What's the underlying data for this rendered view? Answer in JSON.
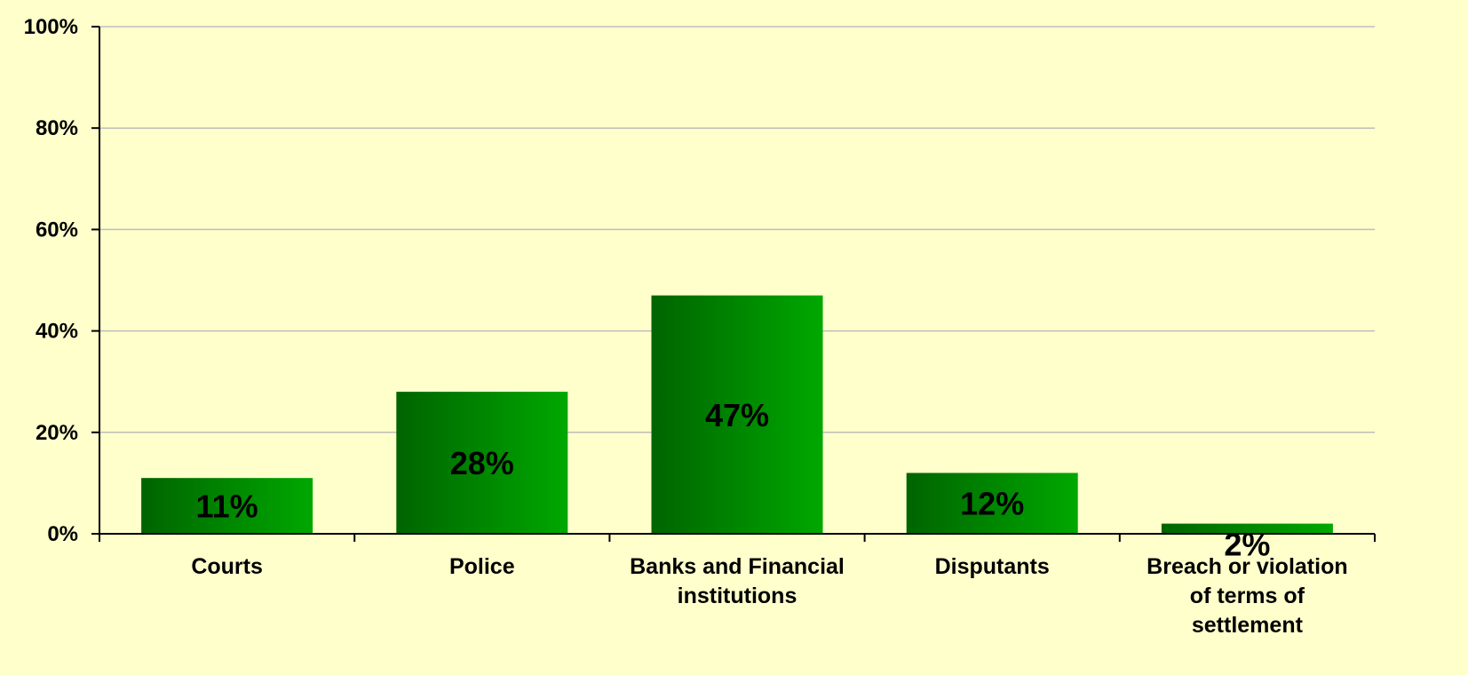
{
  "chart_data": {
    "type": "bar",
    "categories": [
      [
        "Courts"
      ],
      [
        "Police"
      ],
      [
        "Banks and Financial",
        "institutions"
      ],
      [
        "Disputants"
      ],
      [
        "Breach or violation",
        "of terms of",
        "settlement"
      ]
    ],
    "values": [
      11,
      28,
      47,
      12,
      2
    ],
    "data_labels": [
      "11%",
      "28%",
      "47%",
      "12%",
      "2%"
    ],
    "ylim": [
      0,
      100
    ],
    "yticks": [
      0,
      20,
      40,
      60,
      80,
      100
    ],
    "ytick_labels": [
      "0%",
      "20%",
      "40%",
      "60%",
      "80%",
      "100%"
    ],
    "grid": true,
    "legend": "none",
    "colors": {
      "background": "#ffffcc",
      "bar_dark": "#006400",
      "bar_light": "#00a800",
      "grid": "#bdbdbd",
      "axis": "#000000"
    }
  }
}
